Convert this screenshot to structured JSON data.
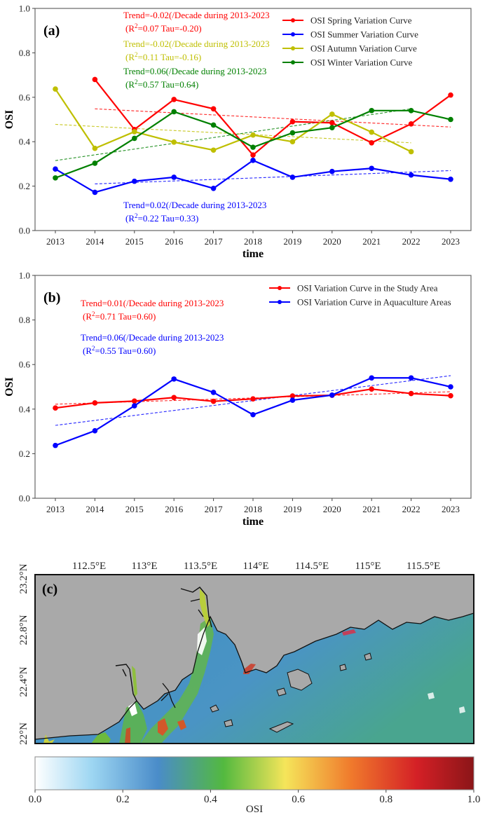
{
  "chart_data": [
    {
      "panel_label": "(a)",
      "type": "line",
      "xlabel": "time",
      "ylabel": "OSI",
      "ylim": [
        0.0,
        1.0
      ],
      "yticks": [
        "0.0",
        "0.2",
        "0.4",
        "0.6",
        "0.8",
        "1.0"
      ],
      "categories": [
        "2013",
        "2014",
        "2015",
        "2016",
        "2017",
        "2018",
        "2019",
        "2020",
        "2021",
        "2022",
        "2023"
      ],
      "grid": false,
      "legend_position": "top-right",
      "series": [
        {
          "name": "OSI Spring Variation Curve",
          "color": "#ff0000",
          "values": [
            null,
            0.68,
            0.455,
            0.59,
            0.548,
            0.34,
            0.49,
            0.485,
            0.395,
            0.48,
            0.61
          ],
          "trend": {
            "from": [
              "2014",
              0.548
            ],
            "to": [
              "2023",
              0.466
            ]
          }
        },
        {
          "name": "OSI Summer Variation Curve",
          "color": "#0000ff",
          "values": [
            0.277,
            0.172,
            0.222,
            0.24,
            0.19,
            0.316,
            0.24,
            0.266,
            0.28,
            0.25,
            0.231
          ],
          "trend": {
            "from": [
              "2014",
              0.21
            ],
            "to": [
              "2023",
              0.27
            ]
          }
        },
        {
          "name": "OSI Autumn Variation Curve",
          "color": "#bfbf00",
          "values": [
            0.637,
            0.37,
            0.445,
            0.398,
            0.362,
            0.43,
            0.4,
            0.524,
            0.443,
            0.355,
            null
          ],
          "trend": {
            "from": [
              "2013",
              0.478
            ],
            "to": [
              "2022",
              0.395
            ]
          }
        },
        {
          "name": "OSI Winter Variation Curve",
          "color": "#008000",
          "values": [
            0.237,
            0.303,
            0.415,
            0.535,
            0.475,
            0.375,
            0.44,
            0.463,
            0.54,
            0.54,
            0.5
          ],
          "trend": {
            "from": [
              "2013",
              0.315
            ],
            "to": [
              "2022",
              0.548
            ]
          }
        }
      ],
      "annotations": [
        {
          "line1": "Trend=-0.02(/Decade during 2013-2023",
          "r2": "0.07",
          "tau": "-0.20",
          "color": "#ff0000"
        },
        {
          "line1": "Trend=-0.02(/Decade during 2013-2023",
          "r2": "0.11",
          "tau": "-0.16",
          "color": "#bfbf00"
        },
        {
          "line1": "Trend=0.06(/Decade during 2013-2023",
          "r2": "0.57",
          "tau": "0.64",
          "color": "#008000"
        },
        {
          "line1": "Trend=0.02(/Decade during 2013-2023",
          "r2": "0.22",
          "tau": "0.33",
          "color": "#0000ff"
        }
      ]
    },
    {
      "panel_label": "(b)",
      "type": "line",
      "xlabel": "time",
      "ylabel": "OSI",
      "ylim": [
        0.0,
        1.0
      ],
      "yticks": [
        "0.0",
        "0.2",
        "0.4",
        "0.6",
        "0.8",
        "1.0"
      ],
      "categories": [
        "2013",
        "2014",
        "2015",
        "2016",
        "2017",
        "2018",
        "2019",
        "2020",
        "2021",
        "2022",
        "2023"
      ],
      "grid": false,
      "legend_position": "top-right",
      "series": [
        {
          "name": "OSI Variation Curve in the Study Area",
          "color": "#ff0000",
          "values": [
            0.405,
            0.428,
            0.436,
            0.452,
            0.435,
            0.446,
            0.459,
            0.462,
            0.49,
            0.47,
            0.46
          ],
          "trend": {
            "from": [
              "2013",
              0.422
            ],
            "to": [
              "2023",
              0.478
            ]
          }
        },
        {
          "name": "OSI Variation Curve in Aquaculture Areas",
          "color": "#0000ff",
          "values": [
            0.237,
            0.303,
            0.415,
            0.535,
            0.475,
            0.375,
            0.44,
            0.463,
            0.54,
            0.54,
            0.5
          ],
          "trend": {
            "from": [
              "2013",
              0.327
            ],
            "to": [
              "2023",
              0.55
            ]
          }
        }
      ],
      "annotations": [
        {
          "line1": "Trend=0.01(/Decade during 2013-2023",
          "r2": "0.71",
          "tau": "0.60",
          "color": "#ff0000"
        },
        {
          "line1": "Trend=0.06(/Decade during 2013-2023",
          "r2": "0.55",
          "tau": "0.60",
          "color": "#0000ff"
        }
      ]
    },
    {
      "panel_label": "(c)",
      "type": "heatmap",
      "title": "",
      "xticks": [
        "112.5°E",
        "113°E",
        "113.5°E",
        "114°E",
        "114.5°E",
        "115°E",
        "115.5°E"
      ],
      "yticks": [
        "22°N",
        "22.4°N",
        "22.8°N",
        "23.2°N"
      ],
      "colorbar": {
        "label": "OSI",
        "range": [
          0.0,
          1.0
        ],
        "ticks": [
          "0.0",
          "0.2",
          "0.4",
          "0.6",
          "0.8",
          "1.0"
        ],
        "stops": [
          {
            "v": 0.0,
            "c": "#ffffff"
          },
          {
            "v": 0.13,
            "c": "#9dd6f2"
          },
          {
            "v": 0.28,
            "c": "#4a8cc9"
          },
          {
            "v": 0.43,
            "c": "#53b93f"
          },
          {
            "v": 0.57,
            "c": "#f5e55a"
          },
          {
            "v": 0.72,
            "c": "#f07a2c"
          },
          {
            "v": 0.87,
            "c": "#d42026"
          },
          {
            "v": 1.0,
            "c": "#8b1518"
          }
        ]
      },
      "land_color": "#a9a9a9",
      "sea_dominant_color": "#4a90c8"
    }
  ]
}
